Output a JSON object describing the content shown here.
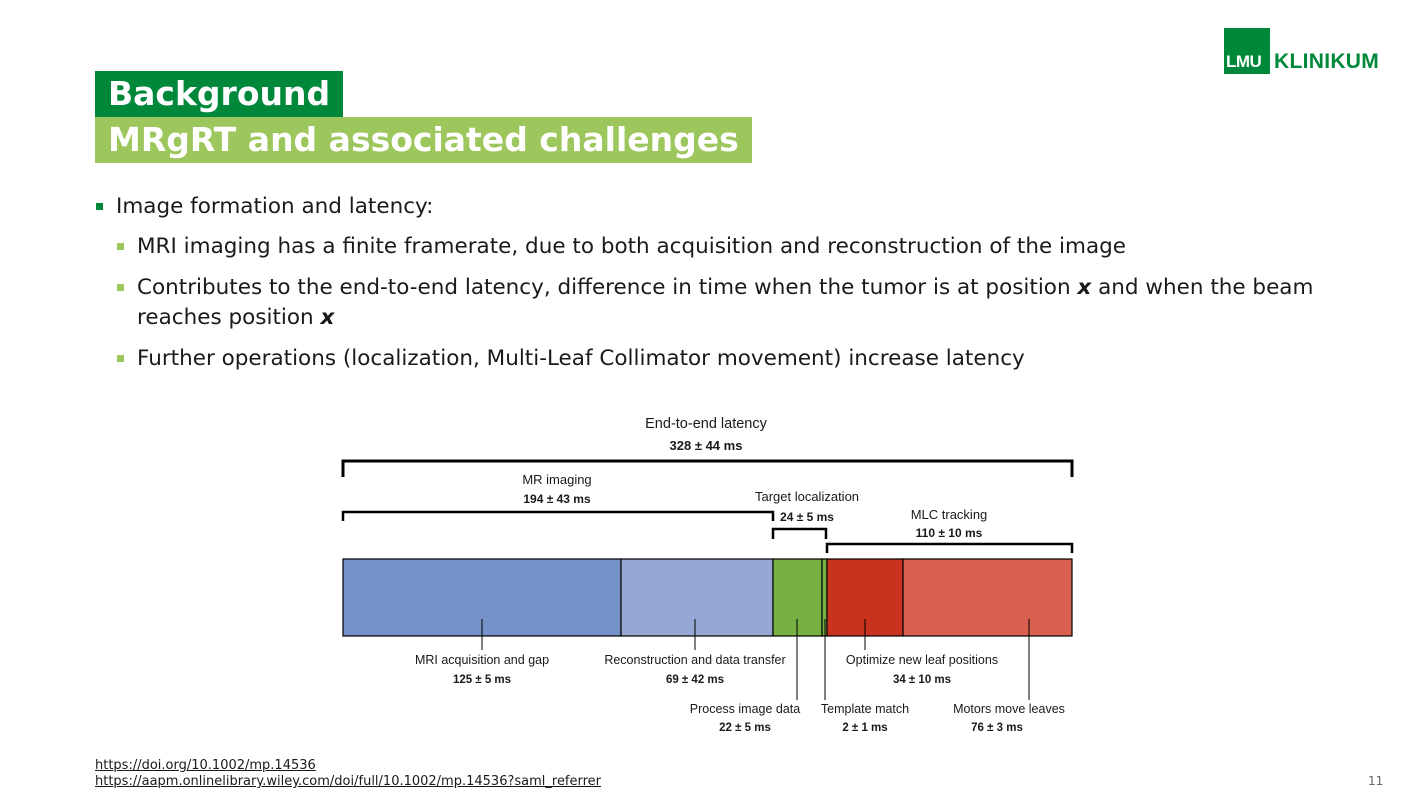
{
  "logo": {
    "mark": "LMU",
    "name": "KLINIKUM"
  },
  "title": {
    "line1": "Background",
    "line2": "MRgRT and associated challenges"
  },
  "bullets": {
    "main": "Image formation and latency:",
    "sub1": "MRI imaging has a finite framerate, due to both acquisition and reconstruction of the image",
    "sub2_a": "Contributes to the end-to-end latency, difference in time when the tumor is at position ",
    "sub2_x1": "x",
    "sub2_b": " and when the beam reaches position ",
    "sub2_x2": "x",
    "sub3": "Further operations (localization, Multi-Leaf Collimator movement) increase latency"
  },
  "diagram": {
    "top_label": "End-to-end latency",
    "top_value": "328 ± 44 ms",
    "groups": [
      {
        "label": "MR imaging",
        "value": "194 ± 43 ms"
      },
      {
        "label": "Target localization",
        "value": "24 ± 5 ms"
      },
      {
        "label": "MLC tracking",
        "value": "110 ± 10 ms"
      }
    ],
    "segments": [
      {
        "label": "MRI acquisition and gap",
        "value": "125 ± 5 ms",
        "color": "#7592c8"
      },
      {
        "label": "Reconstruction and data transfer",
        "value": "69 ± 42 ms",
        "color": "#95a7d3"
      },
      {
        "label": "Process image data",
        "value": "22 ± 5 ms",
        "color": "#78b143"
      },
      {
        "label": "Template match",
        "value": "2 ± 1 ms",
        "color": "#78b143"
      },
      {
        "label": "Optimize new leaf positions",
        "value": "34 ± 10 ms",
        "color": "#c8321f"
      },
      {
        "label": "Motors move leaves",
        "value": "76 ± 3 ms",
        "color": "#d95f4e"
      }
    ]
  },
  "references": [
    "https://doi.org/10.1002/mp.14536",
    "https://aapm.onlinelibrary.wiley.com/doi/full/10.1002/mp.14536?saml_referrer"
  ],
  "page_number": "11"
}
